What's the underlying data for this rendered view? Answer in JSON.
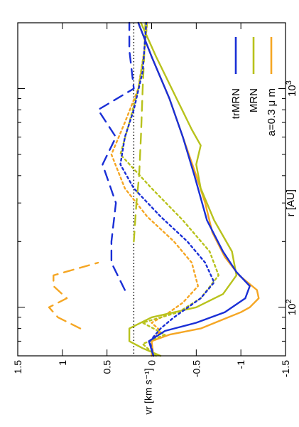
{
  "chart_data": {
    "type": "line",
    "orientation": "rotated 90 degrees counter-clockwise",
    "xlabel": "r [AU]",
    "ylabel": "vr [km s⁻¹]",
    "xscale": "log",
    "xlim": [
      60,
      2000
    ],
    "ylim": [
      -1.5,
      1.5
    ],
    "x_tick_labels": [
      {
        "value": 100,
        "base": "10",
        "exp": "2"
      },
      {
        "value": 1000,
        "base": "10",
        "exp": "3"
      }
    ],
    "y_ticks": [
      {
        "value": 1.5,
        "label": "1.5"
      },
      {
        "value": 1,
        "label": "1"
      },
      {
        "value": 0.5,
        "label": "0.5"
      },
      {
        "value": 0,
        "label": "0"
      },
      {
        "value": -0.5,
        "label": "-0.5"
      },
      {
        "value": -1,
        "label": "-1"
      },
      {
        "value": -1.5,
        "label": "-1.5"
      }
    ],
    "reference_line": {
      "y": 0.2,
      "style": "dotted",
      "color": "#000000"
    },
    "legend": {
      "placement": "top-right",
      "entries": [
        {
          "label": "a=0.3 μ m",
          "color": "#f5a623"
        },
        {
          "label": "MRN",
          "color": "#b8c21c"
        },
        {
          "label": "trMRN",
          "color": "#1a2fd6"
        }
      ]
    },
    "series": [
      {
        "group": "a=0.3 μ m",
        "style": "solid",
        "color": "#f5a623",
        "points": [
          [
            60,
            -0.02
          ],
          [
            70,
            0.0
          ],
          [
            75,
            -0.2
          ],
          [
            80,
            -0.55
          ],
          [
            88,
            -0.8
          ],
          [
            95,
            -1.0
          ],
          [
            100,
            -1.1
          ],
          [
            110,
            -1.2
          ],
          [
            120,
            -1.18
          ],
          [
            140,
            -0.98
          ],
          [
            170,
            -0.82
          ],
          [
            220,
            -0.68
          ],
          [
            300,
            -0.6
          ],
          [
            400,
            -0.5
          ],
          [
            600,
            -0.35
          ],
          [
            900,
            -0.2
          ],
          [
            1400,
            0.0
          ],
          [
            2000,
            0.15
          ]
        ]
      },
      {
        "group": "a=0.3 μ m",
        "style": "dotted",
        "color": "#f5a623",
        "points": [
          [
            60,
            0.0
          ],
          [
            70,
            0.0
          ],
          [
            78,
            -0.1
          ],
          [
            85,
            0.0
          ],
          [
            92,
            -0.15
          ],
          [
            105,
            -0.35
          ],
          [
            125,
            -0.52
          ],
          [
            160,
            -0.45
          ],
          [
            200,
            -0.25
          ],
          [
            260,
            0.05
          ],
          [
            350,
            0.3
          ],
          [
            500,
            0.45
          ],
          [
            700,
            0.3
          ],
          [
            1000,
            0.15
          ],
          [
            1500,
            0.08
          ],
          [
            2000,
            0.05
          ]
        ]
      },
      {
        "group": "a=0.3 μ m",
        "style": "dashed",
        "color": "#f5a623",
        "points": [
          [
            80,
            0.8
          ],
          [
            90,
            1.05
          ],
          [
            100,
            1.15
          ],
          [
            110,
            0.95
          ],
          [
            125,
            1.1
          ],
          [
            140,
            1.1
          ],
          [
            160,
            0.6
          ]
        ]
      },
      {
        "group": "MRN",
        "style": "solid",
        "color": "#b8c21c",
        "points": [
          [
            60,
            -0.1
          ],
          [
            65,
            0.1
          ],
          [
            70,
            0.25
          ],
          [
            80,
            0.25
          ],
          [
            90,
            0.0
          ],
          [
            100,
            -0.5
          ],
          [
            115,
            -0.8
          ],
          [
            140,
            -0.95
          ],
          [
            180,
            -0.9
          ],
          [
            250,
            -0.7
          ],
          [
            350,
            -0.55
          ],
          [
            450,
            -0.5
          ],
          [
            550,
            -0.55
          ],
          [
            650,
            -0.45
          ],
          [
            900,
            -0.28
          ],
          [
            1400,
            -0.05
          ],
          [
            2000,
            0.12
          ]
        ]
      },
      {
        "group": "MRN",
        "style": "dotted",
        "color": "#b8c21c",
        "points": [
          [
            60,
            -0.05
          ],
          [
            68,
            0.1
          ],
          [
            75,
            -0.15
          ],
          [
            85,
            0.1
          ],
          [
            95,
            -0.3
          ],
          [
            110,
            -0.55
          ],
          [
            140,
            -0.75
          ],
          [
            180,
            -0.65
          ],
          [
            250,
            -0.35
          ],
          [
            350,
            0.0
          ],
          [
            500,
            0.35
          ],
          [
            700,
            0.25
          ],
          [
            1000,
            0.15
          ],
          [
            1500,
            0.08
          ],
          [
            2000,
            0.05
          ]
        ]
      },
      {
        "group": "MRN",
        "style": "dashed",
        "color": "#b8c21c",
        "points": [
          [
            200,
            0.2
          ],
          [
            300,
            0.17
          ],
          [
            400,
            0.14
          ],
          [
            600,
            0.12
          ],
          [
            1000,
            0.1
          ],
          [
            1500,
            0.08
          ],
          [
            2000,
            0.07
          ]
        ]
      },
      {
        "group": "trMRN",
        "style": "solid",
        "color": "#1a2fd6",
        "points": [
          [
            60,
            -0.02
          ],
          [
            70,
            0.03
          ],
          [
            78,
            -0.15
          ],
          [
            85,
            -0.5
          ],
          [
            95,
            -0.82
          ],
          [
            110,
            -1.05
          ],
          [
            125,
            -1.1
          ],
          [
            145,
            -0.95
          ],
          [
            180,
            -0.8
          ],
          [
            250,
            -0.62
          ],
          [
            400,
            -0.48
          ],
          [
            600,
            -0.35
          ],
          [
            900,
            -0.2
          ],
          [
            1400,
            0.0
          ],
          [
            2000,
            0.15
          ]
        ]
      },
      {
        "group": "trMRN",
        "style": "dotted",
        "color": "#1a2fd6",
        "points": [
          [
            60,
            -0.02
          ],
          [
            70,
            0.02
          ],
          [
            80,
            -0.1
          ],
          [
            90,
            -0.25
          ],
          [
            110,
            -0.55
          ],
          [
            130,
            -0.7
          ],
          [
            160,
            -0.6
          ],
          [
            200,
            -0.4
          ],
          [
            260,
            -0.1
          ],
          [
            350,
            0.2
          ],
          [
            450,
            0.35
          ],
          [
            600,
            0.3
          ],
          [
            800,
            0.2
          ],
          [
            1200,
            0.1
          ],
          [
            2000,
            0.06
          ]
        ]
      },
      {
        "group": "trMRN",
        "style": "dashed",
        "color": "#1a2fd6",
        "points": [
          [
            120,
            0.3
          ],
          [
            160,
            0.45
          ],
          [
            200,
            0.45
          ],
          [
            300,
            0.4
          ],
          [
            450,
            0.55
          ],
          [
            600,
            0.4
          ],
          [
            800,
            0.6
          ],
          [
            1000,
            0.2
          ],
          [
            1500,
            0.25
          ],
          [
            2000,
            0.25
          ]
        ]
      }
    ]
  }
}
